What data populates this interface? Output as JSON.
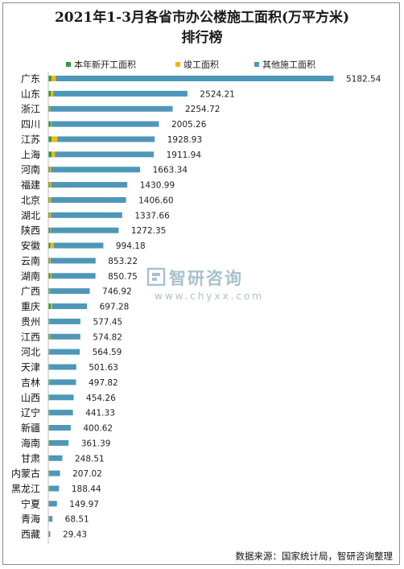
{
  "title_line1": "2021年1-3月各省市办公楼施工面积(万平方米)",
  "title_line2": "排行榜",
  "legend": [
    {
      "label": "本年新开工面积",
      "color": "#2e9b3e"
    },
    {
      "label": "竣工面积",
      "color": "#f2b800"
    },
    {
      "label": "其他施工面积",
      "color": "#4e97b8"
    }
  ],
  "watermark": {
    "name": "智研咨询",
    "url": "www.chyxx.com"
  },
  "source": "数据来源：国家统计局，智研咨询整理",
  "chart_data": {
    "type": "bar",
    "orientation": "horizontal",
    "stacked": true,
    "title": "2021年1-3月各省市办公楼施工面积(万平方米)排行榜",
    "categories": [
      "广东",
      "山东",
      "浙江",
      "四川",
      "江苏",
      "上海",
      "河南",
      "福建",
      "北京",
      "湖北",
      "陕西",
      "安徽",
      "云南",
      "湖南",
      "广西",
      "重庆",
      "贵州",
      "江西",
      "河北",
      "天津",
      "吉林",
      "山西",
      "辽宁",
      "新疆",
      "海南",
      "甘肃",
      "内蒙古",
      "黑龙江",
      "宁夏",
      "青海",
      "西藏"
    ],
    "totals": [
      "5182.54",
      "2524.21",
      "2254.72",
      "2005.26",
      "1928.93",
      "1911.94",
      "1663.34",
      "1430.99",
      "1406.60",
      "1337.66",
      "1272.35",
      "994.18",
      "853.22",
      "850.75",
      "746.92",
      "697.28",
      "577.45",
      "574.82",
      "564.59",
      "501.63",
      "497.82",
      "454.26",
      "441.33",
      "400.62",
      "361.39",
      "248.51",
      "207.02",
      "188.44",
      "149.97",
      "68.51",
      "29.43"
    ],
    "series": [
      {
        "name": "本年新开工面积",
        "values": [
          50,
          40,
          20,
          40,
          50,
          55,
          20,
          20,
          15,
          15,
          25,
          30,
          20,
          30,
          15,
          40,
          12,
          15,
          10,
          8,
          8,
          8,
          8,
          5,
          5,
          5,
          5,
          5,
          3,
          2,
          1
        ]
      },
      {
        "name": "竣工面积",
        "values": [
          80,
          45,
          10,
          10,
          110,
          60,
          20,
          25,
          30,
          25,
          5,
          60,
          15,
          20,
          10,
          20,
          5,
          15,
          5,
          5,
          5,
          5,
          5,
          5,
          5,
          5,
          5,
          5,
          3,
          2,
          1
        ]
      },
      {
        "name": "其他施工面积",
        "values": [
          5052.54,
          2439.21,
          2224.72,
          1955.26,
          1768.93,
          1796.94,
          1623.34,
          1385.99,
          1361.6,
          1297.66,
          1242.35,
          904.18,
          818.22,
          800.75,
          721.92,
          637.28,
          560.45,
          544.82,
          549.59,
          488.63,
          484.82,
          441.26,
          428.33,
          390.62,
          351.39,
          238.51,
          197.02,
          178.44,
          143.97,
          64.51,
          27.43
        ]
      }
    ],
    "grid": false,
    "legend_position": "top"
  }
}
